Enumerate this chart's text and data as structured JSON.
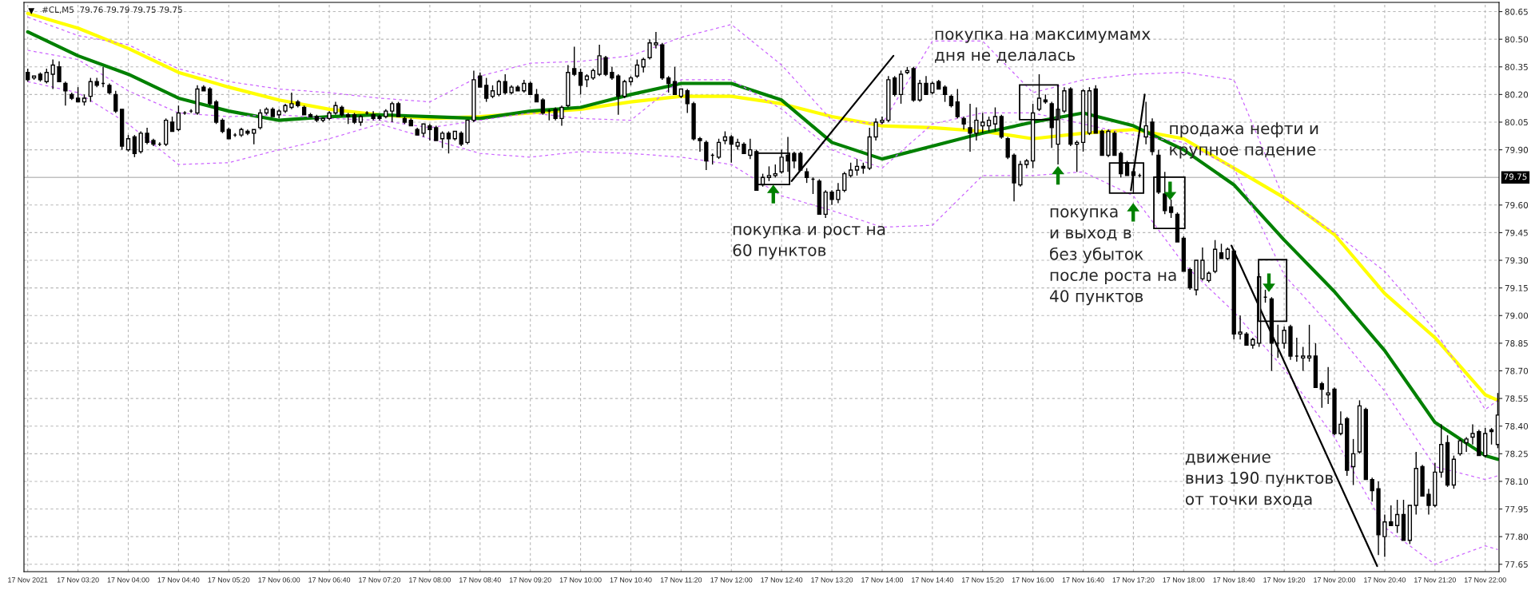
{
  "chart_data": {
    "type": "candlestick",
    "title": "#CL,M5  79.76 79.79 79.75 79.75",
    "x": [
      "2021-11-17T02:40",
      "2021-11-17T02:45",
      "2021-11-17T02:50",
      "2021-11-17T02:55",
      "2021-11-17T03:00",
      "2021-11-17T03:05",
      "2021-11-17T03:10",
      "2021-11-17T03:15",
      "2021-11-17T03:20",
      "2021-11-17T03:25",
      "2021-11-17T03:30",
      "2021-11-17T03:35",
      "2021-11-17T03:40",
      "2021-11-17T03:45",
      "2021-11-17T03:50",
      "2021-11-17T03:55",
      "2021-11-17T04:00",
      "2021-11-17T04:05",
      "2021-11-17T04:10",
      "2021-11-17T04:15",
      "2021-11-17T04:20",
      "2021-11-17T04:25",
      "2021-11-17T04:30",
      "2021-11-17T04:35",
      "2021-11-17T04:40",
      "2021-11-17T04:45",
      "2021-11-17T04:50",
      "2021-11-17T04:55",
      "2021-11-17T05:00",
      "2021-11-17T05:05",
      "2021-11-17T05:10",
      "2021-11-17T05:15",
      "2021-11-17T05:20",
      "2021-11-17T05:25",
      "2021-11-17T05:30",
      "2021-11-17T05:35",
      "2021-11-17T05:40",
      "2021-11-17T05:45",
      "2021-11-17T05:50",
      "2021-11-17T05:55",
      "2021-11-17T06:00",
      "2021-11-17T06:05",
      "2021-11-17T06:10",
      "2021-11-17T06:15",
      "2021-11-17T06:20",
      "2021-11-17T06:25",
      "2021-11-17T06:30",
      "2021-11-17T06:35",
      "2021-11-17T06:40",
      "2021-11-17T06:45",
      "2021-11-17T06:50",
      "2021-11-17T06:55",
      "2021-11-17T07:00",
      "2021-11-17T07:05",
      "2021-11-17T07:10",
      "2021-11-17T07:15",
      "2021-11-17T07:20",
      "2021-11-17T07:25",
      "2021-11-17T07:30",
      "2021-11-17T07:35",
      "2021-11-17T07:40",
      "2021-11-17T07:45",
      "2021-11-17T07:50",
      "2021-11-17T07:55",
      "2021-11-17T08:00",
      "2021-11-17T08:05",
      "2021-11-17T08:10",
      "2021-11-17T08:15",
      "2021-11-17T08:20",
      "2021-11-17T08:25",
      "2021-11-17T08:30",
      "2021-11-17T08:35",
      "2021-11-17T08:40",
      "2021-11-17T08:45",
      "2021-11-17T08:50",
      "2021-11-17T08:55",
      "2021-11-17T09:00",
      "2021-11-17T09:05",
      "2021-11-17T09:10",
      "2021-11-17T09:15",
      "2021-11-17T09:20",
      "2021-11-17T09:25",
      "2021-11-17T09:30",
      "2021-11-17T09:35",
      "2021-11-17T09:40",
      "2021-11-17T09:45",
      "2021-11-17T09:50",
      "2021-11-17T09:55",
      "2021-11-17T10:00",
      "2021-11-17T10:05",
      "2021-11-17T10:10",
      "2021-11-17T10:15",
      "2021-11-17T10:20",
      "2021-11-17T10:25",
      "2021-11-17T10:30",
      "2021-11-17T10:35",
      "2021-11-17T10:40",
      "2021-11-17T10:45",
      "2021-11-17T10:50",
      "2021-11-17T10:55",
      "2021-11-17T11:00",
      "2021-11-17T11:05",
      "2021-11-17T11:10",
      "2021-11-17T11:15",
      "2021-11-17T11:20",
      "2021-11-17T11:25",
      "2021-11-17T11:30",
      "2021-11-17T11:35",
      "2021-11-17T11:40",
      "2021-11-17T11:45",
      "2021-11-17T11:50",
      "2021-11-17T11:55",
      "2021-11-17T12:00",
      "2021-11-17T12:05",
      "2021-11-17T12:10",
      "2021-11-17T12:15",
      "2021-11-17T12:20",
      "2021-11-17T12:25",
      "2021-11-17T12:30",
      "2021-11-17T12:35",
      "2021-11-17T12:40",
      "2021-11-17T12:45",
      "2021-11-17T12:50",
      "2021-11-17T12:55",
      "2021-11-17T13:00",
      "2021-11-17T13:05",
      "2021-11-17T13:10",
      "2021-11-17T13:15",
      "2021-11-17T13:20",
      "2021-11-17T13:25",
      "2021-11-17T13:30",
      "2021-11-17T13:35",
      "2021-11-17T13:40",
      "2021-11-17T13:45",
      "2021-11-17T13:50",
      "2021-11-17T13:55",
      "2021-11-17T14:00",
      "2021-11-17T14:05",
      "2021-11-17T14:10",
      "2021-11-17T14:15",
      "2021-11-17T14:20",
      "2021-11-17T14:25",
      "2021-11-17T14:30",
      "2021-11-17T14:35",
      "2021-11-17T14:40",
      "2021-11-17T14:45",
      "2021-11-17T14:50",
      "2021-11-17T14:55",
      "2021-11-17T15:00",
      "2021-11-17T15:05",
      "2021-11-17T15:10",
      "2021-11-17T15:15",
      "2021-11-17T15:20",
      "2021-11-17T15:25",
      "2021-11-17T15:30",
      "2021-11-17T15:35",
      "2021-11-17T15:40",
      "2021-11-17T15:45",
      "2021-11-17T15:50",
      "2021-11-17T15:55",
      "2021-11-17T16:00",
      "2021-11-17T16:05",
      "2021-11-17T16:10",
      "2021-11-17T16:15",
      "2021-11-17T16:20",
      "2021-11-17T16:25",
      "2021-11-17T16:30",
      "2021-11-17T16:35",
      "2021-11-17T16:40",
      "2021-11-17T16:45",
      "2021-11-17T16:50",
      "2021-11-17T16:55",
      "2021-11-17T17:00",
      "2021-11-17T17:05",
      "2021-11-17T17:10",
      "2021-11-17T17:15",
      "2021-11-17T17:20",
      "2021-11-17T17:25",
      "2021-11-17T17:30",
      "2021-11-17T17:35",
      "2021-11-17T17:40",
      "2021-11-17T17:45",
      "2021-11-17T17:50",
      "2021-11-17T17:55",
      "2021-11-17T18:00",
      "2021-11-17T18:05",
      "2021-11-17T18:10",
      "2021-11-17T18:15",
      "2021-11-17T18:20",
      "2021-11-17T18:25",
      "2021-11-17T18:30",
      "2021-11-17T18:35",
      "2021-11-17T18:40",
      "2021-11-17T18:45",
      "2021-11-17T18:50",
      "2021-11-17T18:55",
      "2021-11-17T19:00",
      "2021-11-17T19:05",
      "2021-11-17T19:10",
      "2021-11-17T19:15",
      "2021-11-17T19:20",
      "2021-11-17T19:25",
      "2021-11-17T19:30",
      "2021-11-17T19:35",
      "2021-11-17T19:40",
      "2021-11-17T19:45",
      "2021-11-17T19:50",
      "2021-11-17T19:55",
      "2021-11-17T20:00",
      "2021-11-17T20:05",
      "2021-11-17T20:10",
      "2021-11-17T20:15",
      "2021-11-17T20:20",
      "2021-11-17T20:25",
      "2021-11-17T20:30",
      "2021-11-17T20:35",
      "2021-11-17T20:40",
      "2021-11-17T20:45",
      "2021-11-17T20:50",
      "2021-11-17T20:55",
      "2021-11-17T21:00",
      "2021-11-17T21:05",
      "2021-11-17T21:10",
      "2021-11-17T21:15",
      "2021-11-17T21:20",
      "2021-11-17T21:25",
      "2021-11-17T21:30",
      "2021-11-17T21:35",
      "2021-11-17T21:40",
      "2021-11-17T21:45",
      "2021-11-17T21:50",
      "2021-11-17T21:55",
      "2021-11-17T22:00",
      "2021-11-17T22:05",
      "2021-11-17T22:10"
    ],
    "ohlc": [
      [
        80.32,
        80.34,
        80.27,
        80.28
      ],
      [
        80.29,
        80.3,
        80.28,
        80.3
      ],
      [
        80.31,
        80.32,
        80.27,
        80.28
      ],
      [
        80.27,
        80.34,
        80.26,
        80.32
      ],
      [
        80.31,
        80.39,
        80.23,
        80.36
      ],
      [
        80.35,
        80.38,
        80.27,
        80.27
      ],
      [
        80.26,
        80.27,
        80.14,
        80.22
      ],
      [
        80.2,
        80.21,
        80.17,
        80.18
      ],
      [
        80.18,
        80.24,
        80.16,
        80.16
      ],
      [
        80.16,
        80.2,
        80.14,
        80.18
      ],
      [
        80.19,
        80.29,
        80.16,
        80.27
      ],
      [
        80.27,
        80.29,
        80.24,
        80.25
      ],
      [
        80.26,
        80.35,
        80.24,
        80.26
      ],
      [
        80.25,
        80.26,
        80.2,
        80.21
      ],
      [
        80.2,
        80.22,
        80.1,
        80.11
      ],
      [
        80.12,
        80.12,
        79.9,
        79.92
      ],
      [
        79.9,
        79.98,
        79.89,
        79.96
      ],
      [
        79.97,
        79.98,
        79.86,
        79.88
      ],
      [
        79.89,
        80.0,
        79.88,
        79.99
      ],
      [
        79.99,
        80.02,
        79.93,
        79.94
      ],
      [
        79.95,
        79.96,
        79.92,
        79.93
      ],
      [
        79.93,
        79.94,
        79.92,
        79.93
      ],
      [
        79.93,
        80.07,
        79.92,
        80.06
      ],
      [
        80.05,
        80.08,
        80.0,
        80.0
      ],
      [
        80.01,
        80.14,
        80.0,
        80.1
      ],
      [
        80.1,
        80.11,
        80.09,
        80.1
      ],
      [
        80.11,
        80.12,
        80.1,
        80.11
      ],
      [
        80.1,
        80.25,
        80.09,
        80.23
      ],
      [
        80.24,
        80.25,
        80.22,
        80.22
      ],
      [
        80.23,
        80.24,
        80.14,
        80.15
      ],
      [
        80.16,
        80.17,
        80.04,
        80.05
      ],
      [
        80.06,
        80.07,
        79.99,
        80.0
      ],
      [
        80.01,
        80.02,
        79.96,
        79.96
      ],
      [
        79.98,
        79.99,
        79.97,
        79.98
      ],
      [
        79.98,
        80.02,
        79.97,
        80.01
      ],
      [
        80.0,
        80.01,
        79.98,
        79.99
      ],
      [
        79.99,
        80.01,
        79.93,
        80.01
      ],
      [
        80.02,
        80.12,
        80.01,
        80.1
      ],
      [
        80.1,
        80.13,
        80.09,
        80.12
      ],
      [
        80.12,
        80.13,
        80.08,
        80.08
      ],
      [
        80.09,
        80.12,
        80.07,
        80.11
      ],
      [
        80.11,
        80.15,
        80.1,
        80.14
      ],
      [
        80.13,
        80.21,
        80.12,
        80.15
      ],
      [
        80.16,
        80.17,
        80.13,
        80.14
      ],
      [
        80.13,
        80.14,
        80.09,
        80.09
      ],
      [
        80.09,
        80.1,
        80.08,
        80.08
      ],
      [
        80.08,
        80.09,
        80.05,
        80.06
      ],
      [
        80.06,
        80.07,
        80.05,
        80.07
      ],
      [
        80.07,
        80.11,
        80.06,
        80.1
      ],
      [
        80.1,
        80.16,
        80.09,
        80.14
      ],
      [
        80.13,
        80.14,
        80.08,
        80.09
      ],
      [
        80.09,
        80.1,
        80.04,
        80.08
      ],
      [
        80.09,
        80.1,
        80.04,
        80.05
      ],
      [
        80.05,
        80.09,
        80.03,
        80.08
      ],
      [
        80.1,
        80.11,
        80.09,
        80.1
      ],
      [
        80.09,
        80.11,
        80.06,
        80.07
      ],
      [
        80.08,
        80.09,
        80.06,
        80.07
      ],
      [
        80.08,
        80.12,
        80.07,
        80.11
      ],
      [
        80.11,
        80.16,
        80.05,
        80.15
      ],
      [
        80.15,
        80.16,
        80.08,
        80.08
      ],
      [
        80.07,
        80.08,
        80.04,
        80.05
      ],
      [
        80.06,
        80.07,
        80.03,
        80.03
      ],
      [
        80.01,
        80.02,
        79.98,
        79.98
      ],
      [
        79.99,
        80.04,
        79.97,
        80.04
      ],
      [
        80.03,
        80.04,
        79.95,
        80.01
      ],
      [
        80.02,
        80.03,
        79.95,
        79.95
      ],
      [
        79.96,
        80.0,
        79.91,
        79.99
      ],
      [
        79.99,
        80.0,
        79.88,
        79.96
      ],
      [
        79.96,
        80.0,
        79.95,
        80.0
      ],
      [
        79.99,
        80.0,
        79.92,
        79.93
      ],
      [
        79.94,
        80.06,
        79.93,
        80.06
      ],
      [
        80.06,
        80.33,
        80.05,
        80.28
      ],
      [
        80.3,
        80.32,
        80.24,
        80.24
      ],
      [
        80.25,
        80.29,
        80.16,
        80.18
      ],
      [
        80.19,
        80.25,
        80.18,
        80.22
      ],
      [
        80.2,
        80.28,
        80.19,
        80.27
      ],
      [
        80.27,
        80.31,
        80.2,
        80.21
      ],
      [
        80.21,
        80.25,
        80.2,
        80.24
      ],
      [
        80.24,
        80.25,
        80.22,
        80.22
      ],
      [
        80.22,
        80.28,
        80.21,
        80.26
      ],
      [
        80.26,
        80.27,
        80.2,
        80.2
      ],
      [
        80.2,
        80.23,
        80.16,
        80.16
      ],
      [
        80.17,
        80.18,
        80.09,
        80.1
      ],
      [
        80.11,
        80.12,
        80.06,
        80.11
      ],
      [
        80.12,
        80.13,
        80.06,
        80.07
      ],
      [
        80.07,
        80.14,
        80.03,
        80.13
      ],
      [
        80.14,
        80.36,
        80.13,
        80.32
      ],
      [
        80.34,
        80.46,
        80.3,
        80.31
      ],
      [
        80.32,
        80.34,
        80.2,
        80.25
      ],
      [
        80.28,
        80.31,
        80.24,
        80.3
      ],
      [
        80.29,
        80.34,
        80.28,
        80.33
      ],
      [
        80.31,
        80.47,
        80.3,
        80.41
      ],
      [
        80.4,
        80.41,
        80.3,
        80.31
      ],
      [
        80.32,
        80.35,
        80.28,
        80.29
      ],
      [
        80.3,
        80.31,
        80.09,
        80.19
      ],
      [
        80.19,
        80.28,
        80.18,
        80.27
      ],
      [
        80.27,
        80.3,
        80.25,
        80.29
      ],
      [
        80.3,
        80.39,
        80.29,
        80.36
      ],
      [
        80.35,
        80.4,
        80.32,
        80.39
      ],
      [
        80.4,
        80.5,
        80.39,
        80.48
      ],
      [
        80.47,
        80.54,
        80.45,
        80.48
      ],
      [
        80.47,
        80.48,
        80.28,
        80.29
      ],
      [
        80.29,
        80.3,
        80.21,
        80.26
      ],
      [
        80.27,
        80.35,
        80.2,
        80.2
      ],
      [
        80.19,
        80.23,
        80.18,
        80.23
      ],
      [
        80.22,
        80.23,
        80.1,
        80.15
      ],
      [
        80.15,
        80.16,
        79.95,
        79.96
      ],
      [
        79.96,
        79.97,
        79.89,
        79.95
      ],
      [
        79.94,
        79.95,
        79.79,
        79.84
      ],
      [
        79.87,
        79.88,
        79.82,
        79.87
      ],
      [
        79.86,
        79.96,
        79.85,
        79.94
      ],
      [
        79.95,
        80.0,
        79.93,
        79.97
      ],
      [
        79.97,
        79.98,
        79.83,
        79.93
      ],
      [
        79.92,
        79.96,
        79.9,
        79.94
      ],
      [
        79.93,
        79.94,
        79.88,
        79.88
      ],
      [
        79.87,
        79.96,
        79.85,
        79.9
      ],
      [
        79.89,
        79.9,
        79.68,
        79.68
      ],
      [
        79.71,
        79.77,
        79.7,
        79.75
      ],
      [
        79.75,
        79.81,
        79.73,
        79.76
      ],
      [
        79.76,
        79.82,
        79.75,
        79.77
      ],
      [
        79.78,
        79.9,
        79.77,
        79.86
      ],
      [
        79.87,
        79.97,
        79.78,
        79.84
      ],
      [
        79.88,
        79.89,
        79.8,
        79.84
      ],
      [
        79.88,
        79.89,
        79.79,
        79.79
      ],
      [
        79.78,
        79.8,
        79.72,
        79.75
      ],
      [
        79.74,
        79.75,
        79.66,
        79.74
      ],
      [
        79.73,
        79.74,
        79.55,
        79.55
      ],
      [
        79.55,
        79.68,
        79.53,
        79.67
      ],
      [
        79.67,
        79.68,
        79.6,
        79.63
      ],
      [
        79.63,
        79.72,
        79.61,
        79.68
      ],
      [
        79.68,
        79.78,
        79.67,
        79.77
      ],
      [
        79.76,
        79.83,
        79.75,
        79.79
      ],
      [
        79.79,
        79.85,
        79.76,
        79.81
      ],
      [
        79.81,
        79.83,
        79.77,
        79.8
      ],
      [
        79.8,
        80.02,
        79.79,
        79.97
      ],
      [
        79.97,
        80.07,
        79.95,
        80.05
      ],
      [
        80.05,
        80.08,
        80.04,
        80.06
      ],
      [
        80.06,
        80.3,
        80.05,
        80.28
      ],
      [
        80.29,
        80.3,
        80.19,
        80.2
      ],
      [
        80.2,
        80.33,
        80.15,
        80.31
      ],
      [
        80.32,
        80.35,
        80.31,
        80.33
      ],
      [
        80.34,
        80.35,
        80.16,
        80.17
      ],
      [
        80.17,
        80.28,
        80.16,
        80.26
      ],
      [
        80.26,
        80.3,
        80.2,
        80.2
      ],
      [
        80.21,
        80.27,
        80.2,
        80.26
      ],
      [
        80.27,
        80.28,
        80.23,
        80.23
      ],
      [
        80.24,
        80.25,
        80.16,
        80.2
      ],
      [
        80.19,
        80.2,
        80.13,
        80.14
      ],
      [
        80.16,
        80.23,
        80.07,
        80.08
      ],
      [
        80.07,
        80.08,
        80.01,
        80.04
      ],
      [
        80.02,
        80.15,
        79.89,
        79.99
      ],
      [
        79.99,
        80.13,
        79.95,
        80.06
      ],
      [
        80.03,
        80.1,
        79.99,
        80.05
      ],
      [
        80.03,
        80.08,
        80.0,
        80.06
      ],
      [
        80.04,
        80.13,
        80.0,
        80.08
      ],
      [
        80.08,
        80.09,
        79.96,
        79.97
      ],
      [
        79.96,
        79.97,
        79.85,
        79.86
      ],
      [
        79.87,
        79.88,
        79.62,
        79.72
      ],
      [
        79.71,
        79.84,
        79.7,
        79.82
      ],
      [
        79.82,
        79.85,
        79.8,
        79.84
      ],
      [
        79.84,
        80.15,
        79.8,
        80.1
      ],
      [
        80.12,
        80.31,
        80.11,
        80.18
      ],
      [
        80.17,
        80.2,
        80.15,
        80.16
      ],
      [
        80.15,
        80.16,
        79.91,
        80.02
      ],
      [
        79.93,
        80.13,
        79.82,
        80.12
      ],
      [
        80.11,
        80.24,
        80.1,
        80.22
      ],
      [
        80.23,
        80.24,
        79.92,
        79.93
      ],
      [
        79.93,
        79.95,
        79.78,
        79.94
      ],
      [
        79.94,
        80.23,
        79.89,
        80.22
      ],
      [
        79.99,
        80.24,
        79.98,
        80.22
      ],
      [
        80.23,
        80.25,
        79.99,
        79.99
      ],
      [
        80.0,
        80.01,
        79.87,
        79.87
      ],
      [
        79.87,
        80.01,
        79.86,
        80.0
      ],
      [
        79.99,
        80.0,
        79.87,
        79.87
      ],
      [
        79.88,
        79.89,
        79.75,
        79.77
      ],
      [
        79.83,
        79.84,
        79.76,
        79.76
      ],
      [
        79.78,
        79.8,
        79.66,
        79.76
      ],
      [
        79.76,
        79.77,
        79.75,
        79.76
      ],
      [
        79.97,
        80.16,
        79.93,
        80.03
      ],
      [
        80.05,
        80.07,
        79.87,
        79.89
      ],
      [
        79.87,
        79.9,
        79.66,
        79.67
      ],
      [
        79.66,
        79.78,
        79.55,
        79.57
      ],
      [
        79.59,
        79.63,
        79.53,
        79.56
      ],
      [
        79.55,
        79.56,
        79.4,
        79.4
      ],
      [
        79.42,
        79.43,
        79.24,
        79.24
      ],
      [
        79.25,
        79.26,
        79.14,
        79.15
      ],
      [
        79.14,
        79.3,
        79.11,
        79.3
      ],
      [
        79.2,
        79.37,
        79.19,
        79.3
      ],
      [
        79.19,
        79.24,
        79.18,
        79.23
      ],
      [
        79.24,
        79.41,
        79.23,
        79.36
      ],
      [
        79.34,
        79.39,
        79.31,
        79.31
      ],
      [
        79.31,
        79.37,
        79.3,
        79.36
      ],
      [
        79.35,
        79.36,
        78.87,
        78.9
      ],
      [
        78.9,
        79.0,
        78.87,
        78.91
      ],
      [
        78.9,
        78.91,
        78.84,
        78.84
      ],
      [
        78.84,
        78.88,
        78.82,
        78.87
      ],
      [
        78.85,
        79.23,
        78.83,
        79.21
      ],
      [
        79.1,
        79.14,
        79.07,
        79.1
      ],
      [
        79.09,
        79.1,
        78.7,
        78.85
      ],
      [
        78.85,
        78.95,
        78.77,
        78.85
      ],
      [
        78.85,
        78.94,
        78.82,
        78.92
      ],
      [
        78.94,
        78.95,
        78.76,
        78.78
      ],
      [
        78.78,
        78.88,
        78.75,
        78.78
      ],
      [
        78.77,
        78.83,
        78.7,
        78.78
      ],
      [
        78.77,
        78.95,
        78.75,
        78.78
      ],
      [
        78.78,
        78.85,
        78.61,
        78.61
      ],
      [
        78.63,
        78.64,
        78.5,
        78.6
      ],
      [
        78.57,
        78.72,
        78.52,
        78.58
      ],
      [
        78.6,
        78.61,
        78.35,
        78.36
      ],
      [
        78.36,
        78.48,
        78.35,
        78.41
      ],
      [
        78.44,
        78.45,
        78.13,
        78.16
      ],
      [
        78.18,
        78.33,
        78.08,
        78.25
      ],
      [
        78.26,
        78.54,
        78.25,
        78.51
      ],
      [
        78.49,
        78.5,
        78.11,
        78.11
      ],
      [
        78.11,
        78.12,
        77.99,
        78.05
      ],
      [
        78.06,
        78.1,
        77.7,
        77.81
      ],
      [
        77.8,
        77.92,
        77.69,
        77.88
      ],
      [
        77.88,
        77.97,
        77.86,
        77.86
      ],
      [
        77.86,
        78.0,
        77.82,
        77.92
      ],
      [
        77.92,
        78.0,
        77.78,
        77.78
      ],
      [
        77.78,
        77.97,
        77.76,
        77.97
      ],
      [
        77.97,
        78.26,
        77.92,
        78.17
      ],
      [
        78.18,
        78.19,
        78.02,
        78.02
      ],
      [
        78.03,
        78.06,
        77.92,
        77.97
      ],
      [
        77.97,
        78.2,
        77.96,
        78.15
      ],
      [
        78.15,
        78.41,
        78.12,
        78.3
      ],
      [
        78.31,
        78.35,
        78.07,
        78.08
      ],
      [
        78.08,
        78.24,
        78.06,
        78.22
      ],
      [
        78.25,
        78.33,
        78.24,
        78.32
      ],
      [
        78.31,
        78.34,
        78.26,
        78.33
      ],
      [
        78.34,
        78.41,
        78.3,
        78.36
      ],
      [
        78.37,
        78.38,
        78.24,
        78.24
      ],
      [
        78.24,
        78.39,
        78.23,
        78.36
      ],
      [
        78.38,
        78.39,
        78.3,
        78.37
      ],
      [
        78.3,
        78.58,
        78.28,
        78.46
      ]
    ],
    "series": [
      {
        "type": "line",
        "color": "#ffff00",
        "x": [
          "2021-11-17T02:40",
          "2021-11-17T03:20",
          "2021-11-17T04:00",
          "2021-11-17T04:40",
          "2021-11-17T05:20",
          "2021-11-17T06:00",
          "2021-11-17T06:40",
          "2021-11-17T07:20",
          "2021-11-17T08:00",
          "2021-11-17T08:40",
          "2021-11-17T09:20",
          "2021-11-17T10:00",
          "2021-11-17T10:40",
          "2021-11-17T11:20",
          "2021-11-17T12:00",
          "2021-11-17T12:40",
          "2021-11-17T13:20",
          "2021-11-17T14:00",
          "2021-11-17T14:40",
          "2021-11-17T15:20",
          "2021-11-17T16:00",
          "2021-11-17T16:40",
          "2021-11-17T17:20",
          "2021-11-17T18:00",
          "2021-11-17T18:40",
          "2021-11-17T19:20",
          "2021-11-17T20:00",
          "2021-11-17T20:40",
          "2021-11-17T21:20",
          "2021-11-17T22:00",
          "2021-11-17T22:10"
        ],
        "values": [
          80.64,
          80.56,
          80.45,
          80.32,
          80.24,
          80.17,
          80.12,
          80.09,
          80.07,
          80.08,
          80.1,
          80.12,
          80.16,
          80.19,
          80.19,
          80.15,
          80.08,
          80.03,
          80.02,
          80.0,
          79.96,
          79.99,
          80.01,
          79.96,
          79.8,
          79.64,
          79.44,
          79.12,
          78.88,
          78.57,
          78.54
        ]
      },
      {
        "type": "line",
        "color": "#008000",
        "x": [
          "2021-11-17T02:40",
          "2021-11-17T03:20",
          "2021-11-17T04:00",
          "2021-11-17T04:40",
          "2021-11-17T05:20",
          "2021-11-17T06:00",
          "2021-11-17T06:40",
          "2021-11-17T07:20",
          "2021-11-17T08:00",
          "2021-11-17T08:40",
          "2021-11-17T09:20",
          "2021-11-17T10:00",
          "2021-11-17T10:40",
          "2021-11-17T11:20",
          "2021-11-17T12:00",
          "2021-11-17T12:40",
          "2021-11-17T13:20",
          "2021-11-17T14:00",
          "2021-11-17T14:40",
          "2021-11-17T15:20",
          "2021-11-17T16:00",
          "2021-11-17T16:40",
          "2021-11-17T17:20",
          "2021-11-17T18:00",
          "2021-11-17T18:40",
          "2021-11-17T19:20",
          "2021-11-17T20:00",
          "2021-11-17T20:40",
          "2021-11-17T21:20",
          "2021-11-17T22:00",
          "2021-11-17T22:10"
        ],
        "values": [
          80.54,
          80.41,
          80.31,
          80.18,
          80.11,
          80.06,
          80.08,
          80.09,
          80.08,
          80.07,
          80.11,
          80.13,
          80.2,
          80.26,
          80.26,
          80.17,
          79.94,
          79.85,
          79.92,
          79.99,
          80.05,
          80.1,
          80.03,
          79.9,
          79.71,
          79.41,
          79.13,
          78.81,
          78.42,
          78.24,
          78.22
        ]
      },
      {
        "type": "line",
        "color": "#cc66ff",
        "line_style": "dashed",
        "x": [
          "2021-11-17T02:40",
          "2021-11-17T03:20",
          "2021-11-17T04:00",
          "2021-11-17T04:40",
          "2021-11-17T05:20",
          "2021-11-17T06:00",
          "2021-11-17T06:40",
          "2021-11-17T07:20",
          "2021-11-17T08:00",
          "2021-11-17T08:40",
          "2021-11-17T09:20",
          "2021-11-17T10:00",
          "2021-11-17T10:40",
          "2021-11-17T11:20",
          "2021-11-17T12:00",
          "2021-11-17T12:40",
          "2021-11-17T13:20",
          "2021-11-17T14:00",
          "2021-11-17T14:40",
          "2021-11-17T15:20",
          "2021-11-17T16:00",
          "2021-11-17T16:40",
          "2021-11-17T17:20",
          "2021-11-17T18:00",
          "2021-11-17T18:40",
          "2021-11-17T19:20",
          "2021-11-17T20:00",
          "2021-11-17T20:40",
          "2021-11-17T21:20",
          "2021-11-17T22:00",
          "2021-11-17T22:10"
        ],
        "values": [
          80.62,
          80.52,
          80.47,
          80.34,
          80.27,
          80.23,
          80.21,
          80.18,
          80.16,
          80.3,
          80.37,
          80.38,
          80.41,
          80.51,
          80.58,
          80.36,
          80.06,
          80.04,
          80.49,
          80.49,
          80.21,
          80.28,
          80.31,
          80.32,
          80.28,
          79.63,
          79.45,
          79.24,
          78.92,
          78.49,
          78.54
        ]
      },
      {
        "type": "line",
        "color": "#cc66ff",
        "line_style": "dashed",
        "x": [
          "2021-11-17T02:40",
          "2021-11-17T03:20",
          "2021-11-17T04:00",
          "2021-11-17T04:40",
          "2021-11-17T05:20",
          "2021-11-17T06:00",
          "2021-11-17T06:40",
          "2021-11-17T07:20",
          "2021-11-17T08:00",
          "2021-11-17T08:40",
          "2021-11-17T09:20",
          "2021-11-17T10:00",
          "2021-11-17T10:40",
          "2021-11-17T11:20",
          "2021-11-17T12:00",
          "2021-11-17T12:40",
          "2021-11-17T13:20",
          "2021-11-17T14:00",
          "2021-11-17T14:40",
          "2021-11-17T15:20",
          "2021-11-17T16:00",
          "2021-11-17T16:40",
          "2021-11-17T17:20",
          "2021-11-17T18:00",
          "2021-11-17T18:40",
          "2021-11-17T19:20",
          "2021-11-17T20:00",
          "2021-11-17T20:40",
          "2021-11-17T21:20",
          "2021-11-17T22:00",
          "2021-11-17T22:10"
        ],
        "values": [
          80.44,
          80.39,
          80.22,
          80.1,
          80.08,
          80.09,
          80.07,
          80.06,
          80.02,
          80.06,
          80.1,
          80.07,
          80.06,
          80.28,
          80.28,
          80.12,
          79.9,
          79.8,
          80.04,
          80.1,
          80.1,
          80.04,
          79.98,
          79.94,
          79.8,
          79.22,
          78.92,
          78.59,
          78.18,
          78.11,
          78.13
        ]
      },
      {
        "type": "line",
        "color": "#cc66ff",
        "line_style": "dashed",
        "x": [
          "2021-11-17T02:40",
          "2021-11-17T03:20",
          "2021-11-17T04:00",
          "2021-11-17T04:40",
          "2021-11-17T05:20",
          "2021-11-17T06:00",
          "2021-11-17T06:40",
          "2021-11-17T07:20",
          "2021-11-17T08:00",
          "2021-11-17T08:40",
          "2021-11-17T09:20",
          "2021-11-17T10:00",
          "2021-11-17T10:40",
          "2021-11-17T11:20",
          "2021-11-17T12:00",
          "2021-11-17T12:40",
          "2021-11-17T13:20",
          "2021-11-17T14:00",
          "2021-11-17T14:40",
          "2021-11-17T15:20",
          "2021-11-17T16:00",
          "2021-11-17T16:40",
          "2021-11-17T17:20",
          "2021-11-17T18:00",
          "2021-11-17T18:40",
          "2021-11-17T19:20",
          "2021-11-17T20:00",
          "2021-11-17T20:40",
          "2021-11-17T21:20",
          "2021-11-17T22:00",
          "2021-11-17T22:10"
        ],
        "values": [
          80.27,
          80.21,
          80.04,
          79.82,
          79.83,
          79.9,
          79.96,
          80.04,
          79.96,
          79.88,
          79.86,
          79.89,
          79.88,
          79.86,
          79.82,
          79.65,
          79.57,
          79.48,
          79.49,
          79.76,
          79.76,
          79.78,
          79.65,
          79.28,
          79.02,
          78.71,
          78.34,
          77.85,
          77.65,
          77.75,
          77.73
        ]
      },
      {
        "type": "line",
        "color": "#000000",
        "x": [
          "2021-11-17T12:48",
          "2021-11-17T14:09"
        ],
        "values": [
          79.73,
          80.41
        ]
      },
      {
        "type": "line",
        "color": "#000000",
        "x": [
          "2021-11-17T17:18",
          "2021-11-17T17:29"
        ],
        "values": [
          79.68,
          80.2
        ]
      },
      {
        "type": "line",
        "color": "#000000",
        "x": [
          "2021-11-17T18:38",
          "2021-11-17T20:34"
        ],
        "values": [
          79.38,
          77.64
        ]
      }
    ],
    "xlim": [
      "2021-11-17T02:37",
      "2021-11-17T22:11"
    ],
    "xticks": [
      {
        "value": "2021-11-17T02:40",
        "label": "17 Nov 2021"
      },
      {
        "value": "2021-11-17T03:20",
        "label": "17 Nov 03:20"
      },
      {
        "value": "2021-11-17T04:00",
        "label": "17 Nov 04:00"
      },
      {
        "value": "2021-11-17T04:40",
        "label": "17 Nov 04:40"
      },
      {
        "value": "2021-11-17T05:20",
        "label": "17 Nov 05:20"
      },
      {
        "value": "2021-11-17T06:00",
        "label": "17 Nov 06:00"
      },
      {
        "value": "2021-11-17T06:40",
        "label": "17 Nov 06:40"
      },
      {
        "value": "2021-11-17T07:20",
        "label": "17 Nov 07:20"
      },
      {
        "value": "2021-11-17T08:00",
        "label": "17 Nov 08:00"
      },
      {
        "value": "2021-11-17T08:40",
        "label": "17 Nov 08:40"
      },
      {
        "value": "2021-11-17T09:20",
        "label": "17 Nov 09:20"
      },
      {
        "value": "2021-11-17T10:00",
        "label": "17 Nov 10:00"
      },
      {
        "value": "2021-11-17T10:40",
        "label": "17 Nov 10:40"
      },
      {
        "value": "2021-11-17T11:20",
        "label": "17 Nov 11:20"
      },
      {
        "value": "2021-11-17T12:00",
        "label": "17 Nov 12:00"
      },
      {
        "value": "2021-11-17T12:40",
        "label": "17 Nov 12:40"
      },
      {
        "value": "2021-11-17T13:20",
        "label": "17 Nov 13:20"
      },
      {
        "value": "2021-11-17T14:00",
        "label": "17 Nov 14:00"
      },
      {
        "value": "2021-11-17T14:40",
        "label": "17 Nov 14:40"
      },
      {
        "value": "2021-11-17T15:20",
        "label": "17 Nov 15:20"
      },
      {
        "value": "2021-11-17T16:00",
        "label": "17 Nov 16:00"
      },
      {
        "value": "2021-11-17T16:40",
        "label": "17 Nov 16:40"
      },
      {
        "value": "2021-11-17T17:20",
        "label": "17 Nov 17:20"
      },
      {
        "value": "2021-11-17T18:00",
        "label": "17 Nov 18:00"
      },
      {
        "value": "2021-11-17T18:40",
        "label": "17 Nov 18:40"
      },
      {
        "value": "2021-11-17T19:20",
        "label": "17 Nov 19:20"
      },
      {
        "value": "2021-11-17T20:00",
        "label": "17 Nov 20:00"
      },
      {
        "value": "2021-11-17T20:40",
        "label": "17 Nov 20:40"
      },
      {
        "value": "2021-11-17T21:20",
        "label": "17 Nov 21:20"
      },
      {
        "value": "2021-11-17T22:00",
        "label": "17 Nov 22:00"
      }
    ],
    "ylim": [
      77.61,
      80.7
    ],
    "yticks": [
      77.65,
      {
        "value": 77.8,
        "label": "77.80"
      },
      77.95,
      {
        "value": 78.1,
        "label": "78.10"
      },
      78.25,
      {
        "value": 78.4,
        "label": "78.40"
      },
      78.55,
      {
        "value": 78.7,
        "label": "78.70"
      },
      78.85,
      {
        "value": 79.0,
        "label": "79.00"
      },
      79.15,
      {
        "value": 79.3,
        "label": "79.30"
      },
      79.45,
      {
        "value": 79.6,
        "label": "79.60"
      },
      {
        "value": 79.9,
        "label": "79.90"
      },
      80.05,
      {
        "value": 80.2,
        "label": "80.20"
      },
      80.35,
      {
        "value": 80.5,
        "label": "80.50"
      },
      80.65
    ],
    "ref_lines": [
      {
        "axis": "y",
        "value": 79.75,
        "label": "79.75",
        "color": "#c0c0c0"
      }
    ],
    "grid": true,
    "annotations": [
      "покупка на максимумамх\nдня не делалась",
      "покупка и рост на\n60 пунктов",
      "продажа нефти и\nкрупное падение",
      "покупка\nи выход в\nбез убыток\nпосле роста на\n40 пунктов",
      "движение\nвниз 190 пунктов\nот точки входа"
    ]
  }
}
